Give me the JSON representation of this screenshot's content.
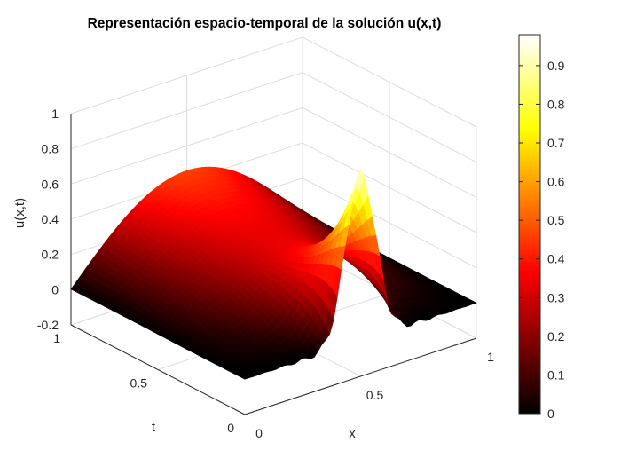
{
  "chart_data": {
    "type": "surface",
    "title": "Representación espacio-temporal de la solución u(x,t)",
    "xlabel": "x",
    "ylabel": "t",
    "zlabel": "u(x,t)",
    "xlim": [
      0,
      1
    ],
    "ylim": [
      0,
      1
    ],
    "zlim": [
      -0.2,
      1
    ],
    "x_ticks": [
      "0",
      "0.5",
      "1"
    ],
    "y_ticks": [
      "0",
      "0.5",
      "1"
    ],
    "z_ticks": [
      "-0.2",
      "0",
      "0.2",
      "0.4",
      "0.6",
      "0.8",
      "1"
    ],
    "grid": true,
    "colormap": "hot",
    "colorbar": {
      "range": [
        0,
        0.98
      ],
      "ticks": [
        "0",
        "0.1",
        "0.2",
        "0.3",
        "0.4",
        "0.5",
        "0.6",
        "0.7",
        "0.8",
        "0.9"
      ]
    },
    "surface_samples": {
      "x": [
        0,
        0.125,
        0.25,
        0.375,
        0.5,
        0.625,
        0.75,
        0.875,
        1
      ],
      "t": [
        0,
        0.25,
        0.5,
        0.75,
        1
      ],
      "u": [
        [
          0,
          0,
          0,
          0,
          0.98,
          0,
          0,
          0,
          0
        ],
        [
          0,
          0.01,
          0.01,
          0.24,
          0.52,
          0.24,
          0.01,
          0.01,
          0
        ],
        [
          0,
          0.08,
          0.16,
          0.22,
          0.24,
          0.22,
          0.16,
          0.08,
          0
        ],
        [
          0,
          0.15,
          0.28,
          0.36,
          0.39,
          0.36,
          0.28,
          0.15,
          0
        ],
        [
          0,
          0.18,
          0.33,
          0.42,
          0.45,
          0.42,
          0.33,
          0.18,
          0
        ]
      ]
    }
  }
}
